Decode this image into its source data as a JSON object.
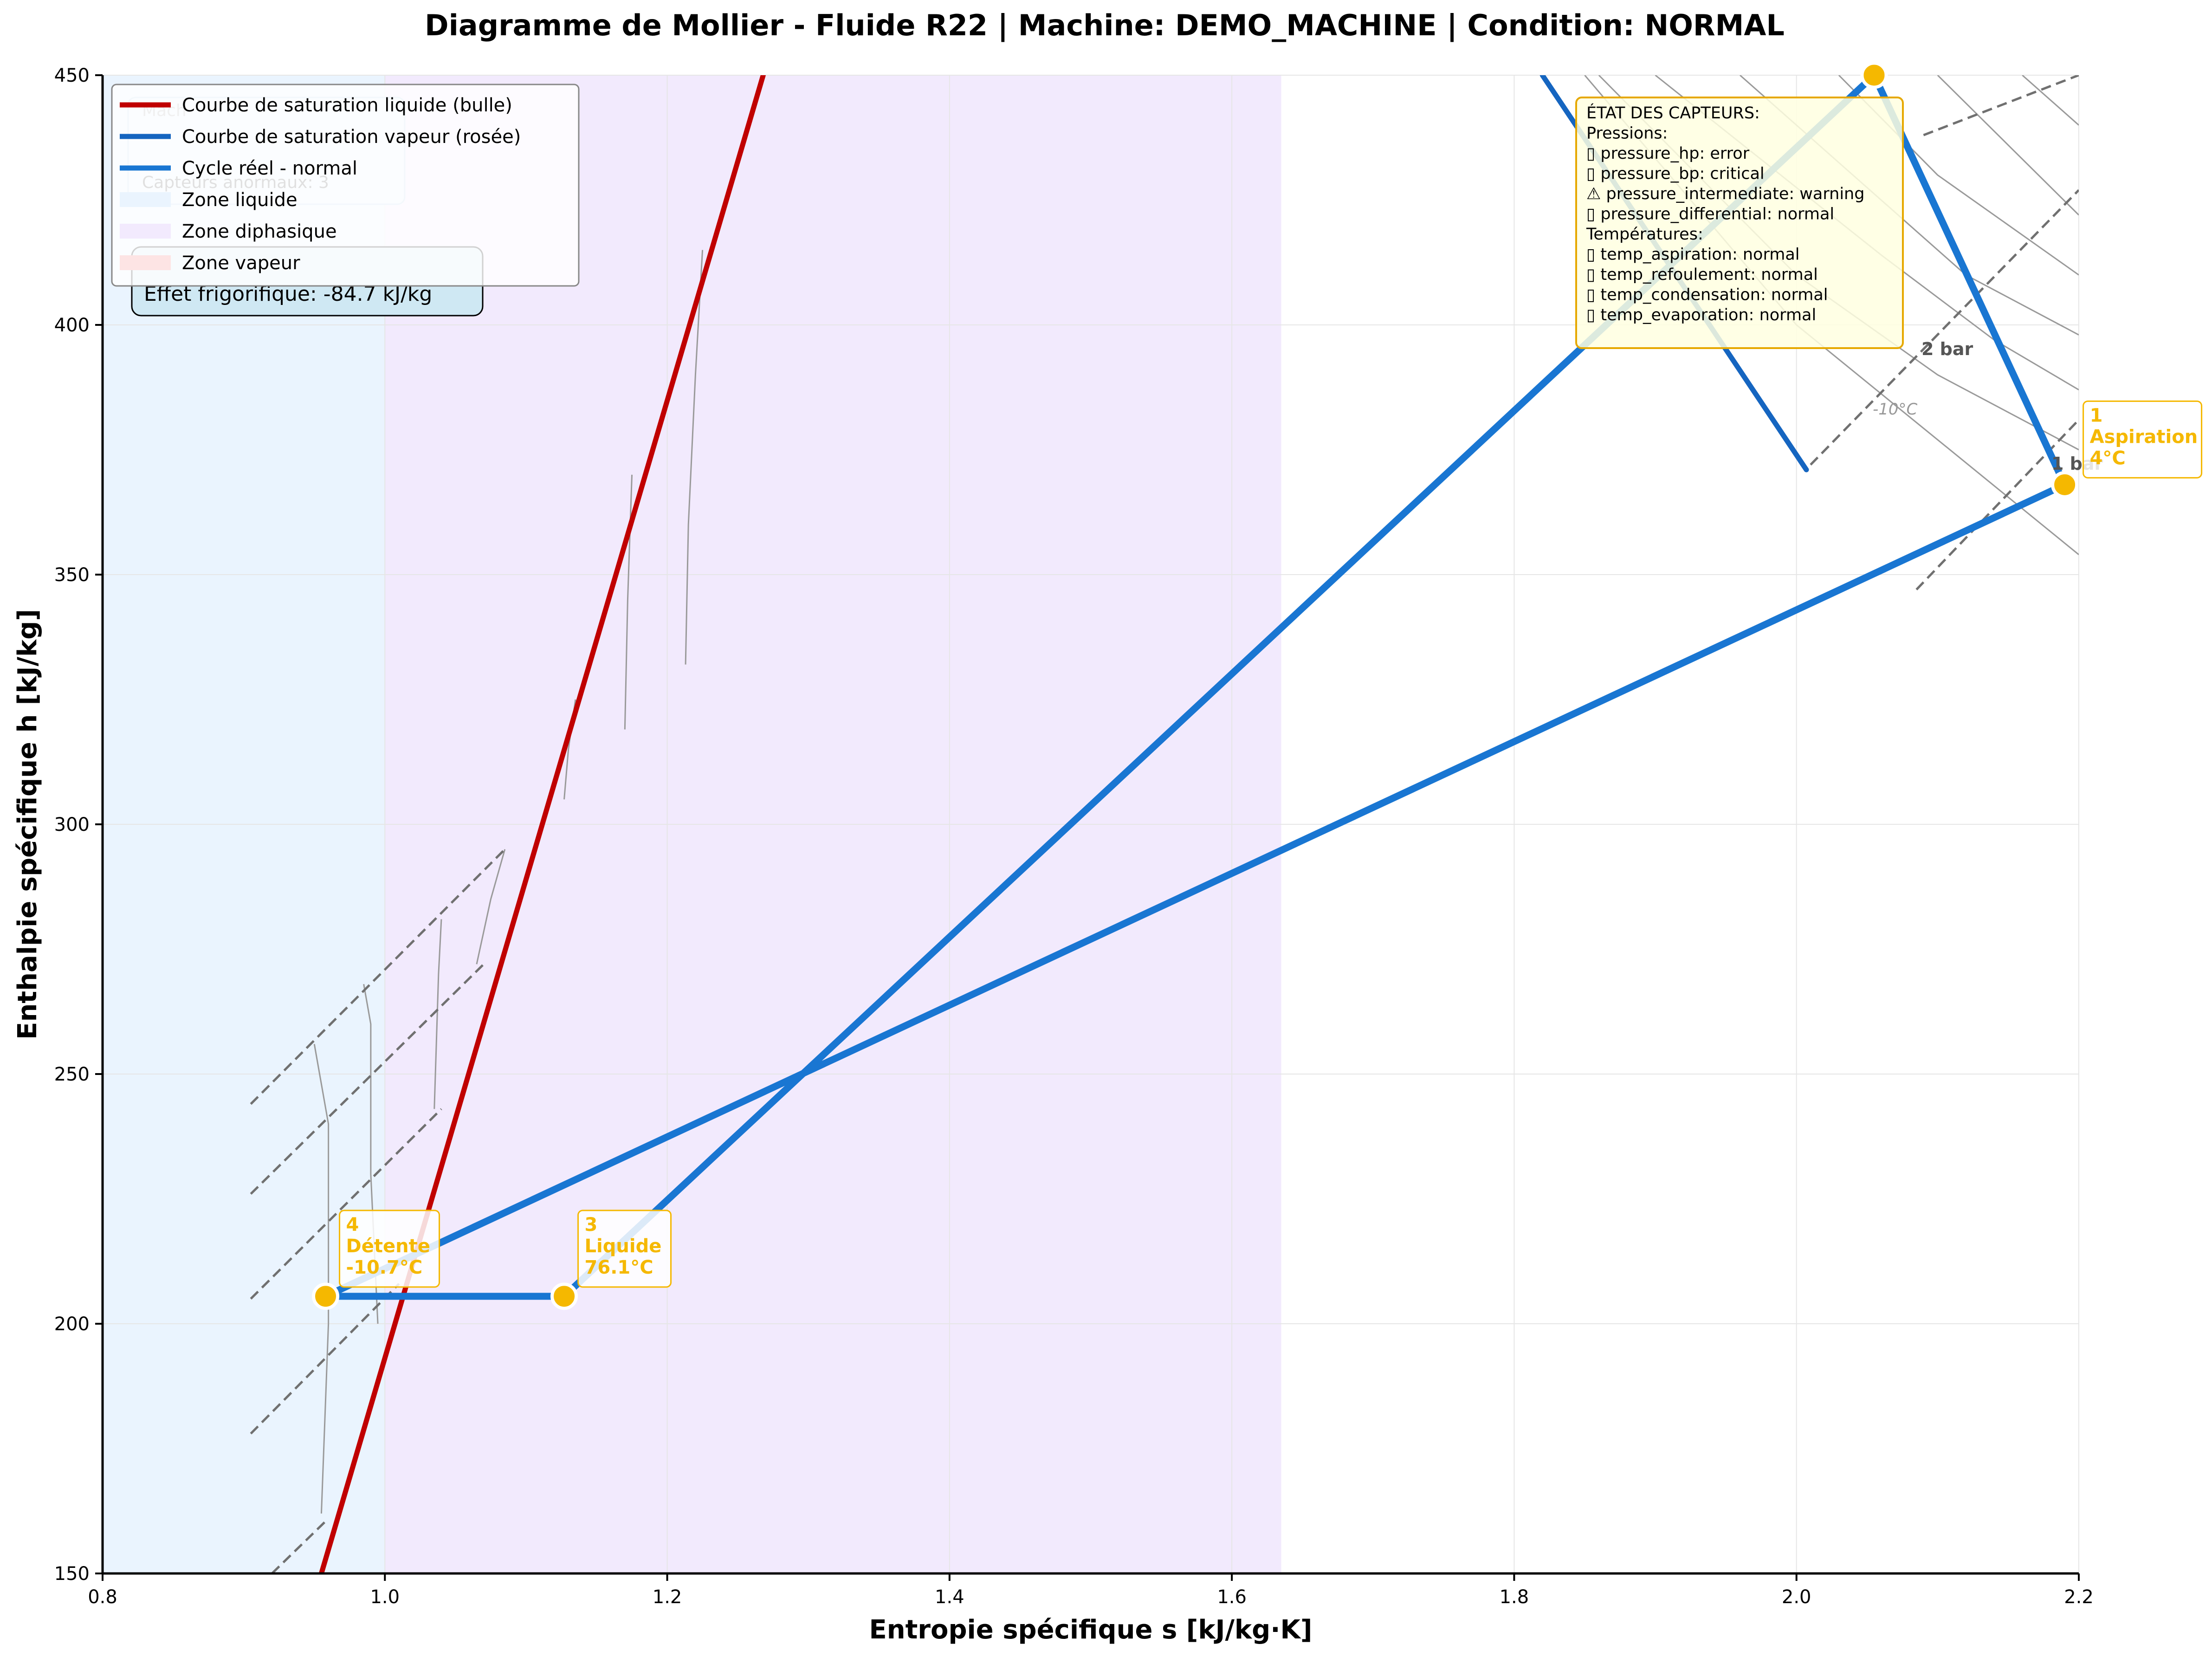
{
  "title": "Diagramme de Mollier - Fluide R22 | Machine: DEMO_MACHINE | Condition: NORMAL",
  "xlabel": "Entropie spécifique s [kJ/kg·K]",
  "ylabel": "Enthalpie spécifique h [kJ/kg]",
  "colors": {
    "liquid_curve": "#c00000",
    "vapor_curve": "#1565c0",
    "cycle": "#1976d2",
    "point": "#f5b800",
    "liquid_zone": "#eaf4fe",
    "diphasic_zone": "#f2eafd",
    "sensor_box_bg": "#ffffe0",
    "sensor_box_border": "#e6a800",
    "effect_box_bg": "#cfe8f3"
  },
  "legend": {
    "items": [
      {
        "label": "Courbe de saturation liquide (bulle)",
        "kind": "line",
        "color": "#c00000"
      },
      {
        "label": "Courbe de saturation vapeur (rosée)",
        "kind": "line",
        "color": "#1565c0"
      },
      {
        "label": "Cycle réel - normal",
        "kind": "line",
        "color": "#1976d2"
      },
      {
        "label": "Zone liquide",
        "kind": "patch",
        "color": "#eaf4fe"
      },
      {
        "label": "Zone diphasique",
        "kind": "patch",
        "color": "#f2eafd"
      },
      {
        "label": "Zone vapeur",
        "kind": "patch",
        "color": "#fde4e4"
      }
    ]
  },
  "hidden_info_box": {
    "lines": [
      "Mach",
      "Capteurs anormaux: 3"
    ]
  },
  "effect_box": {
    "text": "Effet frigorifique: -84.7 kJ/kg"
  },
  "sensor_box": {
    "lines": [
      "ÉTAT DES CAPTEURS:",
      "Pressions:",
      "  ▯ pressure_hp: error",
      "  ▯ pressure_bp: critical",
      "  ⚠ pressure_intermediate: warning",
      "  ▯ pressure_differential: normal",
      "Températures:",
      "  ▯ temp_aspiration: normal",
      "  ▯ temp_refoulement: normal",
      "  ▯ temp_condensation: normal",
      "  ▯ temp_evaporation: normal"
    ]
  },
  "isobar_labels": [
    "2 bar",
    "1 bar"
  ],
  "isotherm_labels": [
    "-10°C"
  ],
  "chart_data": {
    "type": "line",
    "title": "Diagramme de Mollier - Fluide R22 | Machine: DEMO_MACHINE | Condition: NORMAL",
    "xlabel": "Entropie spécifique s [kJ/kg·K]",
    "ylabel": "Enthalpie spécifique h [kJ/kg]",
    "xlim": [
      0.8,
      2.2
    ],
    "ylim": [
      150,
      450
    ],
    "xticks": [
      0.8,
      1.0,
      1.2,
      1.4,
      1.6,
      1.8,
      2.0,
      2.2
    ],
    "xtick_labels": [
      "0.8",
      "1.0",
      "1.2",
      "1.4",
      "1.6",
      "1.8",
      "2.0",
      "2.2"
    ],
    "yticks": [
      150,
      200,
      250,
      300,
      350,
      400,
      450
    ],
    "ytick_labels": [
      "150",
      "200",
      "250",
      "300",
      "350",
      "400",
      "450"
    ],
    "grid": true,
    "legend_position": "top-left",
    "zones": [
      {
        "name": "Zone liquide",
        "x": [
          0.8,
          1.0
        ]
      },
      {
        "name": "Zone diphasique",
        "x": [
          1.0,
          1.635
        ]
      }
    ],
    "series": [
      {
        "name": "Courbe de saturation liquide (bulle)",
        "x": [
          0.955,
          1.268
        ],
        "y": [
          150,
          450
        ]
      },
      {
        "name": "Courbe de saturation vapeur (rosée)",
        "x": [
          1.82,
          2.007
        ],
        "y": [
          450,
          371
        ]
      },
      {
        "name": "Cycle réel - normal",
        "x": [
          0.958,
          1.127,
          2.055,
          2.19,
          0.958
        ],
        "y": [
          205.5,
          205.5,
          450,
          368,
          205.5
        ]
      }
    ],
    "points": [
      {
        "id": "1",
        "label": "Aspiration",
        "temp": "4°C",
        "x": 2.19,
        "y": 368
      },
      {
        "id": "2",
        "label": "",
        "temp": "",
        "x": 2.055,
        "y": 450
      },
      {
        "id": "3",
        "label": "Liquide",
        "temp": "76.1°C",
        "x": 1.127,
        "y": 205.5
      },
      {
        "id": "4",
        "label": "Détente",
        "temp": "-10.7°C",
        "x": 0.958,
        "y": 205.5
      }
    ],
    "isobars_dashed": [
      {
        "x": [
          0.905,
          1.085
        ],
        "y": [
          244,
          295
        ]
      },
      {
        "x": [
          0.905,
          1.07
        ],
        "y": [
          226,
          272
        ]
      },
      {
        "x": [
          0.905,
          1.04
        ],
        "y": [
          205,
          243
        ]
      },
      {
        "x": [
          0.905,
          1.01
        ],
        "y": [
          178,
          208
        ]
      },
      {
        "x": [
          0.92,
          0.96
        ],
        "y": [
          150,
          161
        ]
      },
      {
        "x": [
          2.085,
          2.2
        ],
        "y": [
          347,
          381
        ]
      },
      {
        "x": [
          2.01,
          2.2
        ],
        "y": [
          372,
          427
        ]
      },
      {
        "x": [
          2.09,
          2.2
        ],
        "y": [
          438,
          450
        ]
      }
    ],
    "isotherms_thin": [
      {
        "x": [
          0.955,
          0.96,
          0.96,
          0.95
        ],
        "y": [
          162,
          200,
          240,
          256
        ]
      },
      {
        "x": [
          0.995,
          0.99,
          0.99,
          0.985
        ],
        "y": [
          200,
          230,
          260,
          268
        ]
      },
      {
        "x": [
          1.035,
          1.038,
          1.04
        ],
        "y": [
          243,
          270,
          281
        ]
      },
      {
        "x": [
          1.065,
          1.075,
          1.085
        ],
        "y": [
          272,
          285,
          295
        ]
      },
      {
        "x": [
          1.127,
          1.13,
          1.135
        ],
        "y": [
          305,
          315,
          325
        ]
      },
      {
        "x": [
          1.17,
          1.172,
          1.175
        ],
        "y": [
          319,
          345,
          370
        ]
      },
      {
        "x": [
          1.213,
          1.215,
          1.22,
          1.225
        ],
        "y": [
          332,
          360,
          390,
          415
        ]
      },
      {
        "x": [
          1.86,
          1.93,
          2.0,
          2.1,
          2.2
        ],
        "y": [
          450,
          430,
          410,
          390,
          375
        ]
      },
      {
        "x": [
          1.9,
          1.98,
          2.06,
          2.14,
          2.2
        ],
        "y": [
          450,
          432,
          414,
          397,
          387
        ]
      },
      {
        "x": [
          1.96,
          2.04,
          2.12,
          2.2
        ],
        "y": [
          450,
          430,
          410,
          398
        ]
      },
      {
        "x": [
          2.03,
          2.1,
          2.2
        ],
        "y": [
          450,
          430,
          410
        ]
      },
      {
        "x": [
          2.1,
          2.15,
          2.2
        ],
        "y": [
          450,
          436,
          422
        ]
      },
      {
        "x": [
          2.16,
          2.2
        ],
        "y": [
          450,
          440
        ]
      },
      {
        "x": [
          1.85,
          2.0,
          2.2
        ],
        "y": [
          450,
          400,
          354
        ]
      }
    ]
  }
}
